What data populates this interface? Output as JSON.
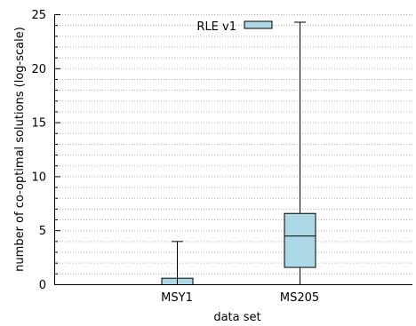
{
  "chart_data": {
    "type": "box",
    "xlabel": "data set",
    "ylabel": "number of co-optimal solutions (log-scale)",
    "ylim": [
      0,
      25
    ],
    "y_ticks": [
      0,
      5,
      10,
      15,
      20,
      25
    ],
    "y_tick_labels": [
      "0",
      "5",
      "10",
      "15",
      "20",
      "25"
    ],
    "y_minor_tick_step": 1,
    "grid": "horizontal dotted",
    "legend": {
      "position": "top-right",
      "entries": [
        "RLE v1"
      ]
    },
    "categories": [
      "MSY1",
      "MS205"
    ],
    "series": [
      {
        "name": "RLE v1",
        "color": "#add8e6",
        "boxes": [
          {
            "category": "MSY1",
            "min": 0,
            "q1": 0,
            "median": 0,
            "q3": 0.6,
            "max": 4.0
          },
          {
            "category": "MS205",
            "min": 0,
            "q1": 1.6,
            "median": 4.5,
            "q3": 6.6,
            "max": 24.3
          }
        ]
      }
    ]
  }
}
